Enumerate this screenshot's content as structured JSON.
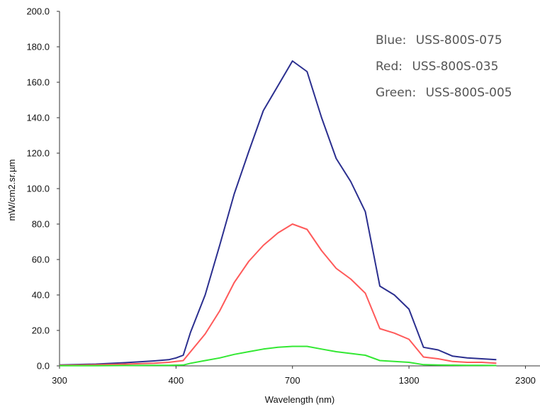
{
  "chart_data": {
    "type": "line",
    "title": "",
    "xlabel": "Wavelength (nm)",
    "ylabel": "mW/cm2.sr.µm",
    "y_ticks": [
      "0.0",
      "20.0",
      "40.0",
      "60.0",
      "80.0",
      "100.0",
      "120.0",
      "140.0",
      "160.0",
      "180.0",
      "200.0"
    ],
    "ylim": [
      0,
      200
    ],
    "x_ticks": [
      "300",
      "400",
      "700",
      "1300",
      "2300"
    ],
    "x_tick_index": [
      0,
      8,
      16,
      24,
      32
    ],
    "x_index_range": [
      0,
      33
    ],
    "grid": false,
    "legend_position": "top-right",
    "legend": [
      {
        "label": "Blue:",
        "value": "USS-800S-075",
        "color": "#2b2f8f"
      },
      {
        "label": "Red:",
        "value": "USS-800S-035",
        "color": "#ff5a5a"
      },
      {
        "label": "Green:",
        "value": "USS-800S-005",
        "color": "#33e833"
      }
    ],
    "series": [
      {
        "color": "#2b2f8f",
        "values": [
          0.5,
          1,
          1.8,
          2.8,
          3.5,
          4.5,
          6,
          19,
          40,
          68,
          97,
          121,
          144,
          158,
          172,
          166,
          140,
          117,
          104,
          87,
          45,
          40,
          32,
          10.5,
          9,
          5.5,
          4.5,
          4,
          3.5
        ]
      },
      {
        "color": "#ff5a5a",
        "values": [
          0.3,
          0.6,
          1,
          1.5,
          2,
          2.5,
          3,
          8,
          18,
          31,
          47,
          59,
          68,
          75,
          80,
          77,
          65,
          55,
          49,
          41,
          21,
          18.5,
          15,
          5,
          4,
          2.5,
          2,
          2,
          1.5
        ]
      },
      {
        "color": "#33e833",
        "values": [
          0.1,
          0.1,
          0.2,
          0.3,
          0.3,
          0.4,
          0.5,
          1.5,
          3,
          4.5,
          6.5,
          8,
          9.5,
          10.5,
          11,
          11,
          9.5,
          8,
          7,
          6,
          3,
          2.5,
          2,
          0.7,
          0.5,
          0.4,
          0.3,
          0.3,
          0.2
        ]
      }
    ],
    "series_x_index": [
      0,
      2.5,
      4.5,
      6.5,
      7.5,
      8,
      8.5,
      9,
      10,
      11,
      12,
      13,
      14,
      15,
      16,
      17,
      18,
      19,
      20,
      21,
      22,
      23,
      24,
      25,
      26,
      27,
      28,
      29,
      30
    ]
  }
}
